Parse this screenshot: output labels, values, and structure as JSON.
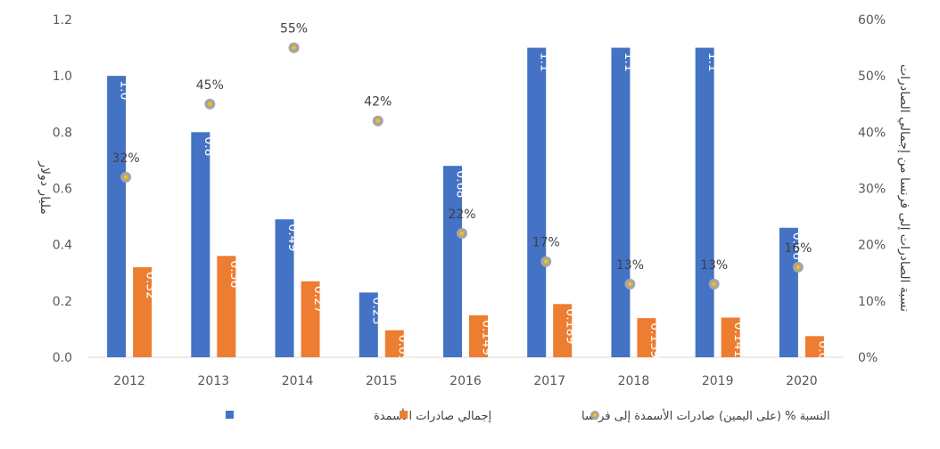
{
  "chart_data": {
    "type": "bar",
    "categories": [
      "2012",
      "2013",
      "2014",
      "2015",
      "2016",
      "2017",
      "2018",
      "2019",
      "2020"
    ],
    "series": [
      {
        "name": "إجمالي صادرات الأسمدة",
        "axis": "left",
        "values": [
          1.0,
          0.8,
          0.49,
          0.23,
          0.68,
          1.1,
          1.1,
          1.1,
          0.46
        ],
        "labels": [
          "1.0",
          "0.8",
          "0.49",
          "0.23",
          "0.68",
          "1.1",
          "1.1",
          "1.1",
          "0.46"
        ],
        "color": "#4472C4"
      },
      {
        "name": "صادرات الأسمدة إلى فرنسا",
        "axis": "left",
        "values": [
          0.32,
          0.36,
          0.27,
          0.096,
          0.149,
          0.189,
          0.139,
          0.141,
          0.075
        ],
        "labels": [
          "0.32",
          "0.36",
          "0.27",
          "0.096",
          "0.149",
          "0.189",
          "0.139",
          "0.141",
          "0.075"
        ],
        "color": "#ED7D31"
      },
      {
        "name": "النسبة % (على اليمين)",
        "axis": "right",
        "type": "scatter",
        "values": [
          32,
          45,
          55,
          42,
          22,
          17,
          13,
          13,
          16
        ],
        "labels": [
          "32%",
          "45%",
          "55%",
          "42%",
          "22%",
          "17%",
          "13%",
          "13%",
          "16%"
        ],
        "color": "#A5A5A5",
        "marker_center_color": "#FFC000"
      }
    ],
    "ylabel": "مليار دولار",
    "ylabel_right": "نسبة الصادرات إلى فرنسا من إجمالي الصادرات",
    "ylim": [
      0,
      1.2
    ],
    "yticks": [
      "0.0",
      "0.2",
      "0.4",
      "0.6",
      "0.8",
      "1.0",
      "1.2"
    ],
    "ylim_right": [
      0,
      60
    ],
    "yticks_right": [
      "0%",
      "10%",
      "20%",
      "30%",
      "40%",
      "50%",
      "60%"
    ],
    "grid": false,
    "legend_position": "bottom"
  }
}
